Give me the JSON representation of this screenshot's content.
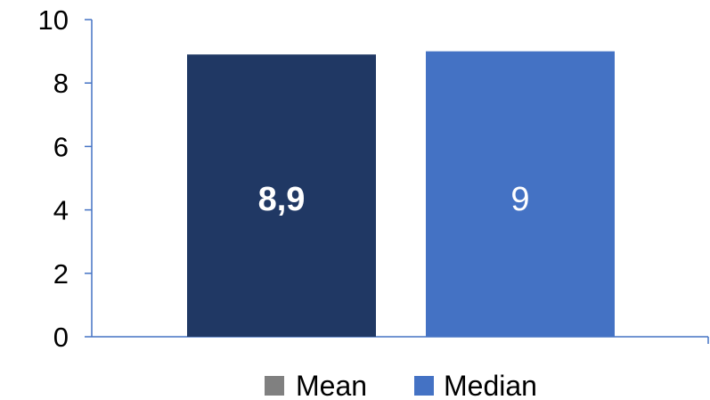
{
  "chart_data": {
    "type": "bar",
    "title": "",
    "xlabel": "",
    "ylabel": "",
    "ylim": [
      0,
      10
    ],
    "yticks": [
      0,
      2,
      4,
      6,
      8,
      10
    ],
    "ytick_labels": [
      "0",
      "2",
      "4",
      "6",
      "8",
      "10"
    ],
    "grid": false,
    "legend_position": "bottom",
    "series": [
      {
        "name": "Mean",
        "value": 8.9,
        "data_label": "8,9",
        "color": "#203864",
        "label_color": "#ffffff",
        "label_bold": true,
        "legend_swatch_color": "#808080"
      },
      {
        "name": "Median",
        "value": 9,
        "data_label": "9",
        "color": "#4472c4",
        "label_color": "#ffffff",
        "label_bold": false,
        "legend_swatch_color": "#4472c4"
      }
    ],
    "axis_color": "#4472c4"
  }
}
